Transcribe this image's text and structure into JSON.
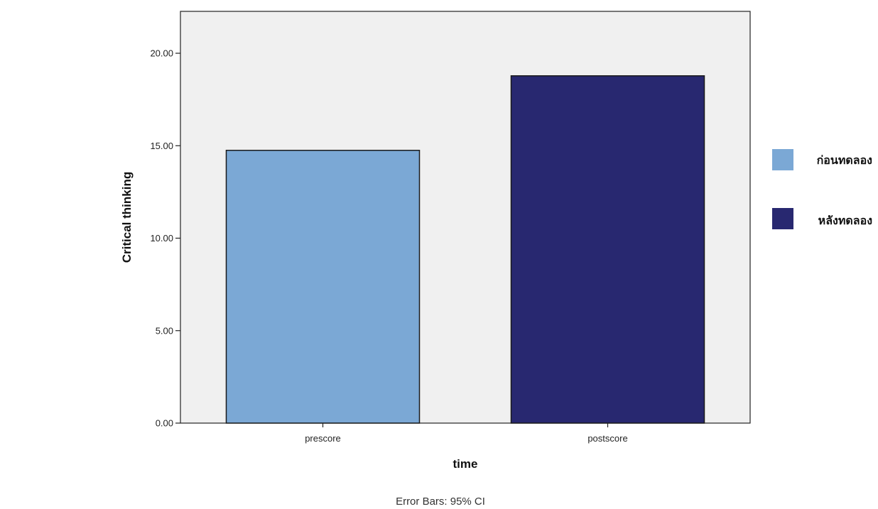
{
  "chart_data": {
    "type": "bar",
    "categories": [
      "prescore",
      "postscore"
    ],
    "values": [
      14.75,
      18.78
    ],
    "colors": [
      "#7BA8D5",
      "#282870"
    ],
    "xlabel": "time",
    "ylabel": "Critical thinking",
    "ylim": [
      0,
      22
    ],
    "yticks": [
      "0.00",
      "5.00",
      "10.00",
      "15.00",
      "20.00"
    ],
    "legend": {
      "placement": "right",
      "entries": [
        {
          "label": "ก่อนทดลอง",
          "color": "#7BA8D5"
        },
        {
          "label": "หลังทดลอง",
          "color": "#282870"
        }
      ]
    },
    "footnote": "Error Bars: 95% CI",
    "plot_background": "#F0F0F0",
    "grid": false
  }
}
